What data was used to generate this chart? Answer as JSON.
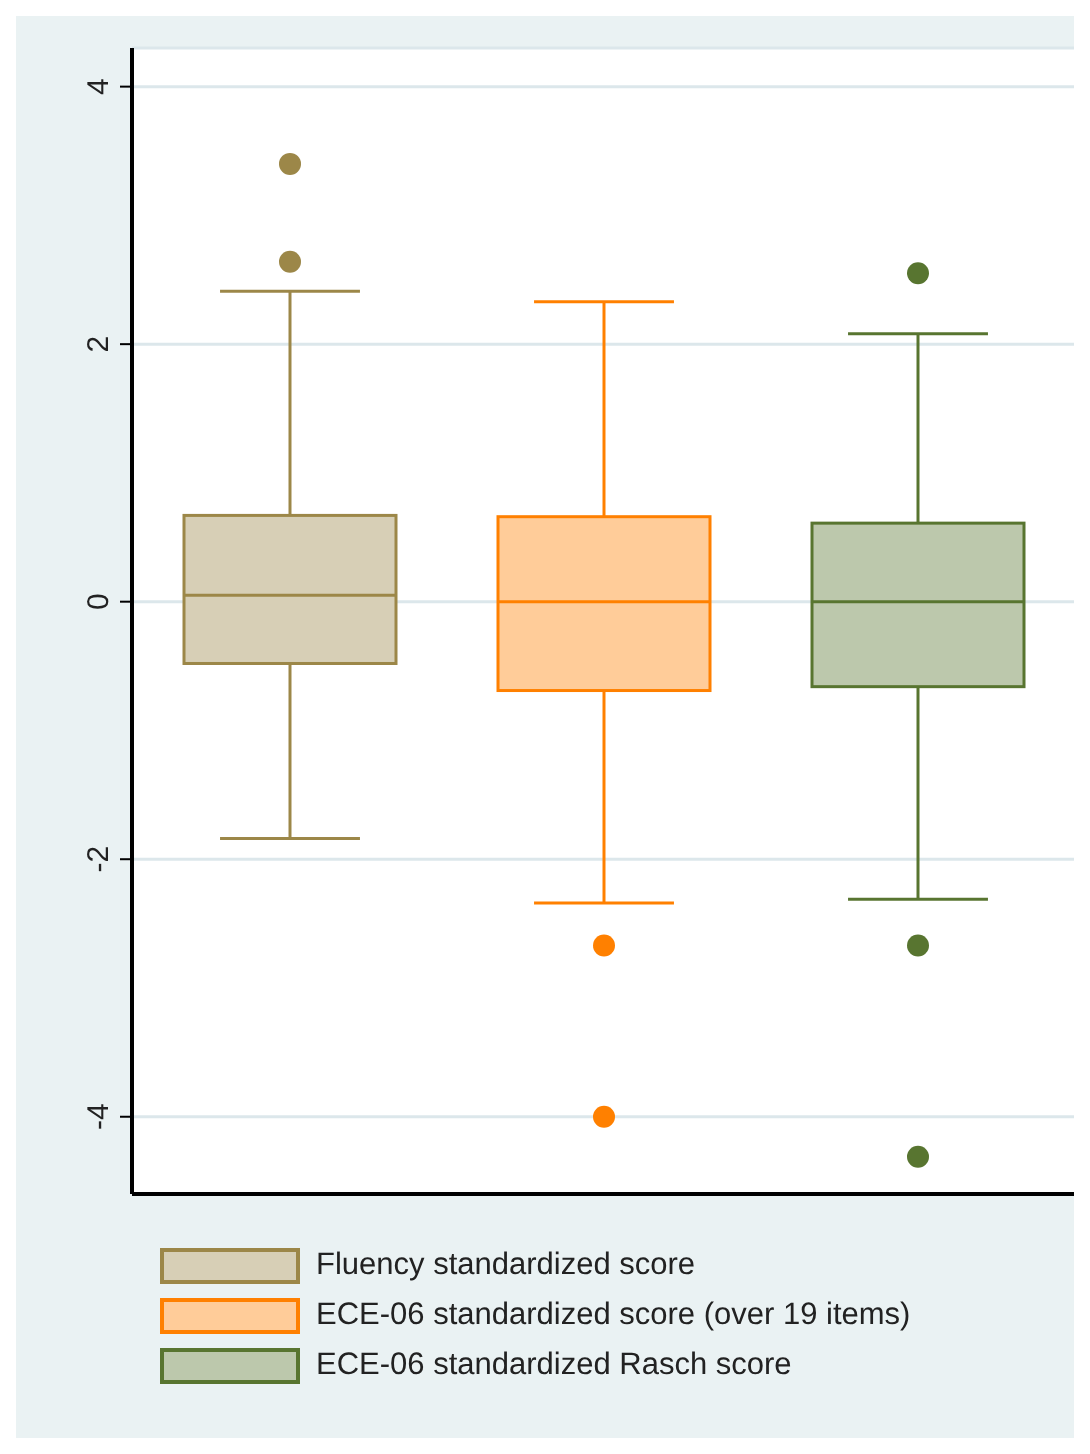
{
  "chart_data": {
    "type": "box",
    "categories": [
      null
    ],
    "series": [
      {
        "name": "Fluency standardized score",
        "color": "#9c8748",
        "boxes": [
          {
            "low": -1.84,
            "q1": -0.48,
            "median": 0.05,
            "q3": 0.67,
            "high": 2.41,
            "outliers": [
              3.4,
              2.64
            ]
          }
        ]
      },
      {
        "name": "ECE-06 standardized score (over 19 items)",
        "color": "#ff8000",
        "boxes": [
          {
            "low": -2.34,
            "q1": -0.69,
            "median": 0,
            "q3": 0.66,
            "high": 2.33,
            "outliers": [
              -2.67,
              -4.0
            ]
          }
        ]
      },
      {
        "name": "ECE-06 standardized Rasch score",
        "color": "#587530",
        "boxes": [
          {
            "low": -2.31,
            "q1": -0.66,
            "median": 0,
            "q3": 0.61,
            "high": 2.08,
            "outliers": [
              2.55,
              -2.67,
              -4.31
            ]
          }
        ]
      }
    ],
    "ylim": [
      -4.6,
      4.3
    ],
    "yticks": [
      -4,
      -2,
      0,
      2,
      4
    ],
    "grid": "y",
    "legend": "bottom",
    "marker": "circle"
  }
}
